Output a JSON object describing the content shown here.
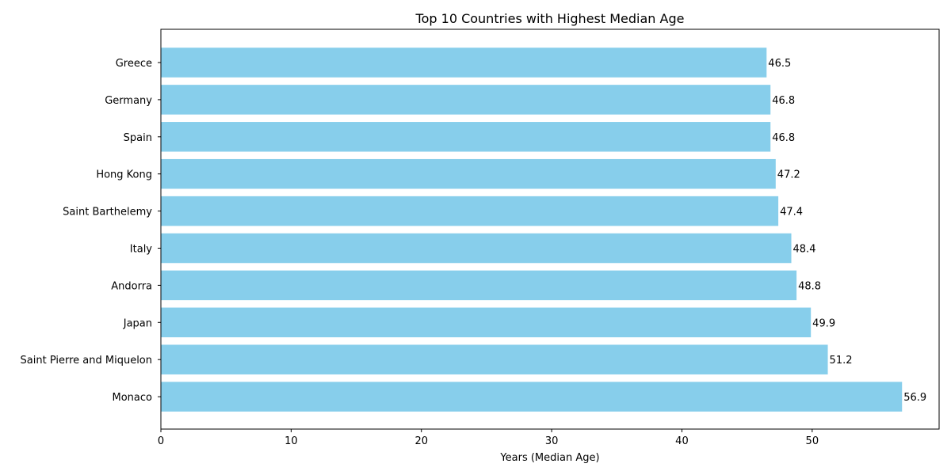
{
  "chart_data": {
    "type": "bar",
    "orientation": "horizontal",
    "title": "Top 10 Countries with Highest Median Age",
    "xlabel": "Years (Median Age)",
    "ylabel": "",
    "categories": [
      "Greece",
      "Germany",
      "Spain",
      "Hong Kong",
      "Saint Barthelemy",
      "Italy",
      "Andorra",
      "Japan",
      "Saint Pierre and Miquelon",
      "Monaco"
    ],
    "values": [
      46.5,
      46.8,
      46.8,
      47.2,
      47.4,
      48.4,
      48.8,
      49.9,
      51.2,
      56.9
    ],
    "value_labels": [
      "46.5",
      "46.8",
      "46.8",
      "47.2",
      "47.4",
      "48.4",
      "48.8",
      "49.9",
      "51.2",
      "56.9"
    ],
    "xlim": [
      0,
      59.745
    ],
    "xticks": [
      0,
      10,
      20,
      30,
      40,
      50
    ],
    "xtick_labels": [
      "0",
      "10",
      "20",
      "30",
      "40",
      "50"
    ],
    "grid": false,
    "bar_color": "#87CEEB"
  }
}
